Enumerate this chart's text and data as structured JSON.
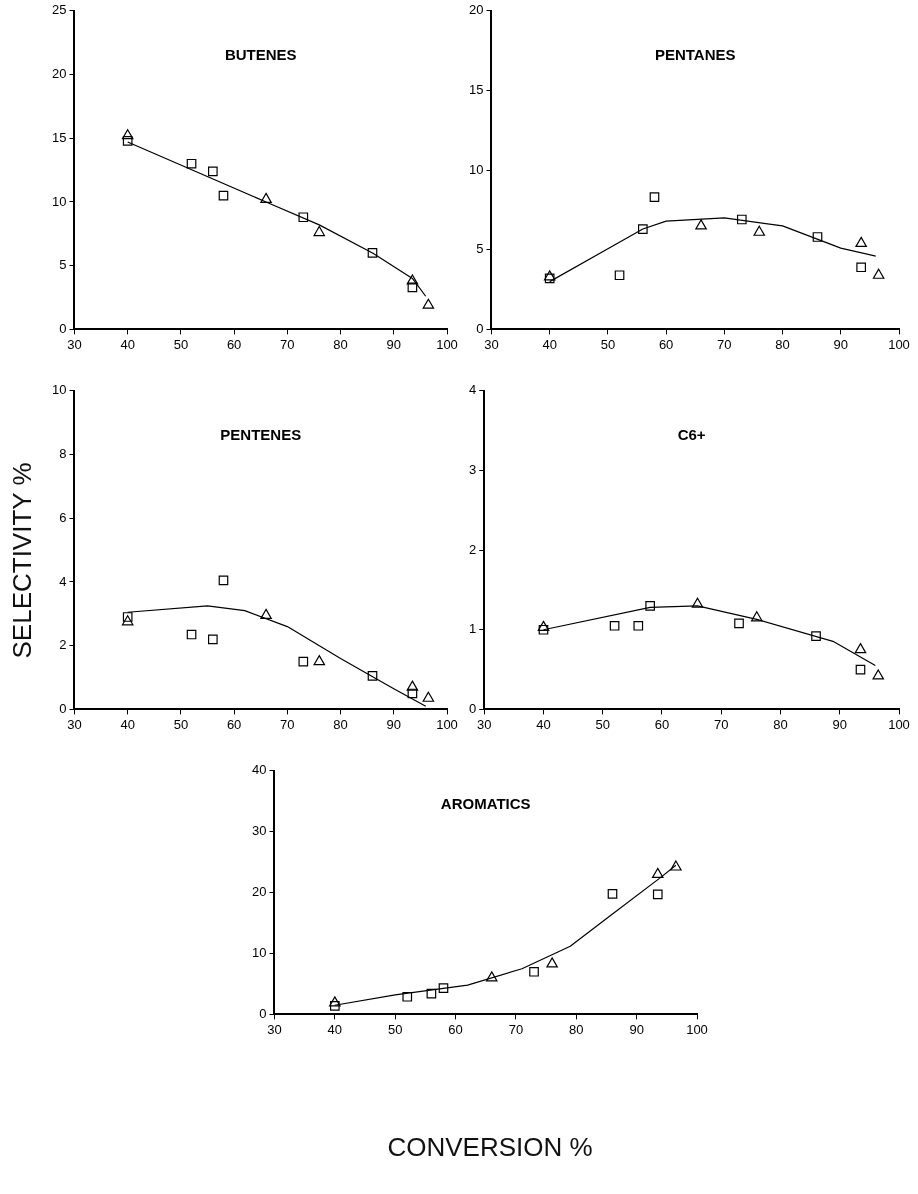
{
  "chart_data": [
    {
      "type": "scatter",
      "title": "BUTENES",
      "xlim": [
        30,
        100
      ],
      "xticks": [
        30,
        40,
        50,
        60,
        70,
        80,
        90,
        100
      ],
      "ylim": [
        0,
        25
      ],
      "yticks": [
        0,
        5,
        10,
        15,
        20,
        25
      ],
      "grid": false,
      "legend": false,
      "series": [
        {
          "type": "scatter",
          "marker": "square",
          "color": "#000000",
          "x": [
            40,
            52,
            56,
            58,
            73,
            86,
            93.5
          ],
          "values": [
            14.8,
            13,
            12.4,
            10.5,
            8.8,
            6,
            3.3
          ]
        },
        {
          "type": "scatter",
          "marker": "triangle",
          "color": "#000000",
          "x": [
            40,
            66,
            76,
            93.5,
            96.5
          ],
          "values": [
            15.2,
            10.2,
            7.6,
            3.8,
            1.9
          ]
        },
        {
          "type": "line",
          "marker": "none",
          "color": "#000000",
          "x": [
            40,
            66,
            76,
            86,
            93.5,
            96
          ],
          "values": [
            14.7,
            10,
            8.2,
            6,
            4,
            2.6
          ]
        }
      ]
    },
    {
      "type": "scatter",
      "title": "PENTANES",
      "xlim": [
        30,
        100
      ],
      "xticks": [
        30,
        40,
        50,
        60,
        70,
        80,
        90,
        100
      ],
      "ylim": [
        0,
        20
      ],
      "yticks": [
        0,
        5,
        10,
        15,
        20
      ],
      "grid": false,
      "legend": false,
      "series": [
        {
          "type": "scatter",
          "marker": "square",
          "color": "#000000",
          "x": [
            40,
            52,
            56,
            58,
            73,
            86,
            93.5
          ],
          "values": [
            3.2,
            3.4,
            6.3,
            8.3,
            6.9,
            5.8,
            3.9
          ]
        },
        {
          "type": "scatter",
          "marker": "triangle",
          "color": "#000000",
          "x": [
            40,
            66,
            76,
            93.5,
            96.5
          ],
          "values": [
            3.3,
            6.5,
            6.1,
            5.4,
            3.4
          ]
        },
        {
          "type": "line",
          "marker": "none",
          "color": "#000000",
          "x": [
            40,
            56,
            60,
            70,
            80,
            90,
            96
          ],
          "values": [
            3,
            6.3,
            6.8,
            7,
            6.5,
            5.1,
            4.6
          ]
        }
      ]
    },
    {
      "type": "scatter",
      "title": "PENTENES",
      "ylabel": "SELECTIVITY %",
      "xlim": [
        30,
        100
      ],
      "xticks": [
        30,
        40,
        50,
        60,
        70,
        80,
        90,
        100
      ],
      "ylim": [
        0,
        10
      ],
      "yticks": [
        0,
        2,
        4,
        6,
        8,
        10
      ],
      "grid": false,
      "legend": false,
      "series": [
        {
          "type": "scatter",
          "marker": "square",
          "color": "#000000",
          "x": [
            40,
            52,
            56,
            58,
            73,
            86,
            93.5
          ],
          "values": [
            2.9,
            2.35,
            2.2,
            4.05,
            1.5,
            1.05,
            0.5
          ]
        },
        {
          "type": "scatter",
          "marker": "triangle",
          "color": "#000000",
          "x": [
            40,
            66,
            76,
            93.5,
            96.5
          ],
          "values": [
            2.75,
            2.95,
            1.5,
            0.7,
            0.35
          ]
        },
        {
          "type": "line",
          "marker": "none",
          "color": "#000000",
          "x": [
            40,
            55,
            62,
            70,
            80,
            90,
            96
          ],
          "values": [
            3.05,
            3.25,
            3.1,
            2.6,
            1.6,
            0.65,
            0.1
          ]
        }
      ]
    },
    {
      "type": "scatter",
      "title": "C6+",
      "xlim": [
        30,
        100
      ],
      "xticks": [
        30,
        40,
        50,
        60,
        70,
        80,
        90,
        100
      ],
      "ylim": [
        0,
        4
      ],
      "yticks": [
        0,
        1,
        2,
        3,
        4
      ],
      "grid": false,
      "legend": false,
      "series": [
        {
          "type": "scatter",
          "marker": "square",
          "color": "#000000",
          "x": [
            40,
            52,
            56,
            58,
            73,
            86,
            93.5
          ],
          "values": [
            1,
            1.05,
            1.05,
            1.3,
            1.08,
            0.92,
            0.5
          ]
        },
        {
          "type": "scatter",
          "marker": "triangle",
          "color": "#000000",
          "x": [
            40,
            66,
            76,
            93.5,
            96.5
          ],
          "values": [
            1.03,
            1.32,
            1.15,
            0.75,
            0.42
          ]
        },
        {
          "type": "line",
          "marker": "none",
          "color": "#000000",
          "x": [
            40,
            58,
            66,
            76,
            89,
            96
          ],
          "values": [
            1,
            1.28,
            1.3,
            1.13,
            0.85,
            0.55
          ]
        }
      ]
    },
    {
      "type": "scatter",
      "title": "AROMATICS",
      "xlabel": "CONVERSION %",
      "xlim": [
        30,
        100
      ],
      "xticks": [
        30,
        40,
        50,
        60,
        70,
        80,
        90,
        100
      ],
      "ylim": [
        0,
        40
      ],
      "yticks": [
        0,
        10,
        20,
        30,
        40
      ],
      "grid": false,
      "legend": false,
      "series": [
        {
          "type": "scatter",
          "marker": "square",
          "color": "#000000",
          "x": [
            40,
            52,
            56,
            58,
            73,
            86,
            93.5
          ],
          "values": [
            1.4,
            2.9,
            3.4,
            4.3,
            7,
            19.8,
            19.7
          ]
        },
        {
          "type": "scatter",
          "marker": "triangle",
          "color": "#000000",
          "x": [
            40,
            66,
            76,
            93.5,
            96.5
          ],
          "values": [
            1.9,
            6,
            8.3,
            23,
            24.2
          ]
        },
        {
          "type": "line",
          "marker": "none",
          "color": "#000000",
          "x": [
            40,
            50,
            62,
            71,
            79,
            86,
            94,
            96.5
          ],
          "values": [
            1.5,
            3.2,
            4.8,
            7.5,
            11.2,
            16.5,
            22.5,
            24.5
          ]
        }
      ]
    }
  ]
}
